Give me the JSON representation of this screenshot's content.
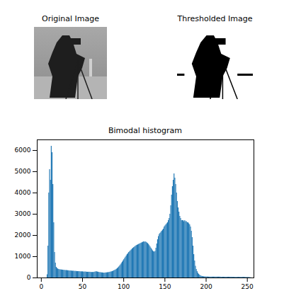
{
  "chart_data": [
    {
      "type": "image",
      "title": "Original Image",
      "tick_labels": false
    },
    {
      "type": "image",
      "title": "Thresholded Image",
      "tick_labels": false
    },
    {
      "type": "histogram",
      "title": "Bimodal histogram",
      "color": "#1f77b4",
      "xlim": [
        -5,
        258
      ],
      "ylim": [
        0,
        6500
      ],
      "xticks": [
        0,
        50,
        100,
        150,
        200,
        250
      ],
      "yticks": [
        0,
        1000,
        2000,
        3000,
        4000,
        5000,
        6000
      ],
      "bins": [
        0,
        1,
        2,
        3,
        4,
        5,
        6,
        7,
        8,
        9,
        10,
        11,
        12,
        13,
        14,
        15,
        16,
        17,
        18,
        19,
        20,
        21,
        22,
        23,
        24,
        25,
        26,
        27,
        28,
        29,
        30,
        31,
        32,
        33,
        34,
        35,
        36,
        37,
        38,
        39,
        40,
        41,
        42,
        43,
        44,
        45,
        46,
        47,
        48,
        49,
        50,
        51,
        52,
        53,
        54,
        55,
        56,
        57,
        58,
        59,
        60,
        61,
        62,
        63,
        64,
        65,
        66,
        67,
        68,
        69,
        70,
        71,
        72,
        73,
        74,
        75,
        76,
        77,
        78,
        79,
        80,
        81,
        82,
        83,
        84,
        85,
        86,
        87,
        88,
        89,
        90,
        91,
        92,
        93,
        94,
        95,
        96,
        97,
        98,
        99,
        100,
        101,
        102,
        103,
        104,
        105,
        106,
        107,
        108,
        109,
        110,
        111,
        112,
        113,
        114,
        115,
        116,
        117,
        118,
        119,
        120,
        121,
        122,
        123,
        124,
        125,
        126,
        127,
        128,
        129,
        130,
        131,
        132,
        133,
        134,
        135,
        136,
        137,
        138,
        139,
        140,
        141,
        142,
        143,
        144,
        145,
        146,
        147,
        148,
        149,
        150,
        151,
        152,
        153,
        154,
        155,
        156,
        157,
        158,
        159,
        160,
        161,
        162,
        163,
        164,
        165,
        166,
        167,
        168,
        169,
        170,
        171,
        172,
        173,
        174,
        175,
        176,
        177,
        178,
        179,
        180,
        181,
        182,
        183,
        184,
        185,
        186,
        187,
        188,
        189,
        190,
        191,
        192,
        193,
        194,
        195,
        196,
        197,
        198,
        199,
        200,
        201,
        202,
        203,
        204,
        205,
        206,
        207,
        208,
        209,
        210,
        211,
        212,
        213,
        214,
        215,
        216,
        217,
        218,
        219,
        220,
        221,
        222,
        223,
        224,
        225,
        226,
        227,
        228,
        229,
        230,
        231,
        232,
        233,
        234,
        235,
        236,
        237,
        238,
        239,
        240,
        241,
        242,
        243,
        244,
        245,
        246,
        247,
        248,
        249,
        250,
        251,
        252,
        253,
        254,
        255,
        256
      ],
      "values": [
        0,
        0,
        0,
        0,
        0,
        0,
        0,
        150,
        1500,
        4000,
        5100,
        4600,
        6200,
        5900,
        4400,
        2600,
        1200,
        700,
        500,
        450,
        420,
        400,
        390,
        380,
        380,
        370,
        370,
        360,
        360,
        350,
        350,
        350,
        340,
        340,
        330,
        330,
        330,
        320,
        320,
        320,
        310,
        310,
        310,
        300,
        300,
        300,
        300,
        290,
        290,
        290,
        290,
        280,
        280,
        280,
        280,
        270,
        270,
        270,
        270,
        270,
        260,
        260,
        260,
        260,
        270,
        280,
        290,
        290,
        280,
        270,
        260,
        250,
        250,
        240,
        240,
        230,
        230,
        230,
        240,
        240,
        250,
        250,
        260,
        270,
        280,
        290,
        300,
        320,
        340,
        360,
        380,
        410,
        440,
        480,
        520,
        570,
        620,
        680,
        740,
        800,
        860,
        920,
        980,
        1040,
        1100,
        1150,
        1200,
        1240,
        1280,
        1320,
        1360,
        1400,
        1430,
        1460,
        1490,
        1520,
        1540,
        1560,
        1580,
        1600,
        1620,
        1640,
        1660,
        1680,
        1700,
        1690,
        1700,
        1680,
        1650,
        1620,
        1580,
        1520,
        1460,
        1400,
        1340,
        1280,
        1240,
        1220,
        1250,
        1400,
        1600,
        1800,
        1950,
        2050,
        2100,
        2150,
        2200,
        2250,
        2300,
        2400,
        2450,
        2500,
        2550,
        2600,
        2700,
        2800,
        3000,
        3400,
        3900,
        4300,
        4600,
        4900,
        4700,
        4400,
        4000,
        3600,
        3300,
        3100,
        2900,
        2800,
        2700,
        2700,
        2700,
        2650,
        2700,
        2650,
        2650,
        2600,
        2600,
        2550,
        2500,
        2400,
        2200,
        1900,
        1500,
        1100,
        800,
        550,
        400,
        300,
        220,
        170,
        130,
        100,
        80,
        70,
        60,
        55,
        50,
        50,
        45,
        45,
        45,
        40,
        40,
        40,
        40,
        40,
        40,
        40,
        40,
        40,
        40,
        40,
        40,
        40,
        40,
        40,
        35,
        35,
        35,
        35,
        35,
        35,
        35,
        35,
        35,
        35,
        35,
        35,
        35,
        35,
        30,
        30,
        30,
        30,
        30,
        30,
        30,
        30,
        30,
        30,
        30,
        30,
        30,
        30,
        30,
        30,
        25,
        25,
        25,
        20,
        20,
        15,
        10,
        0
      ]
    }
  ]
}
